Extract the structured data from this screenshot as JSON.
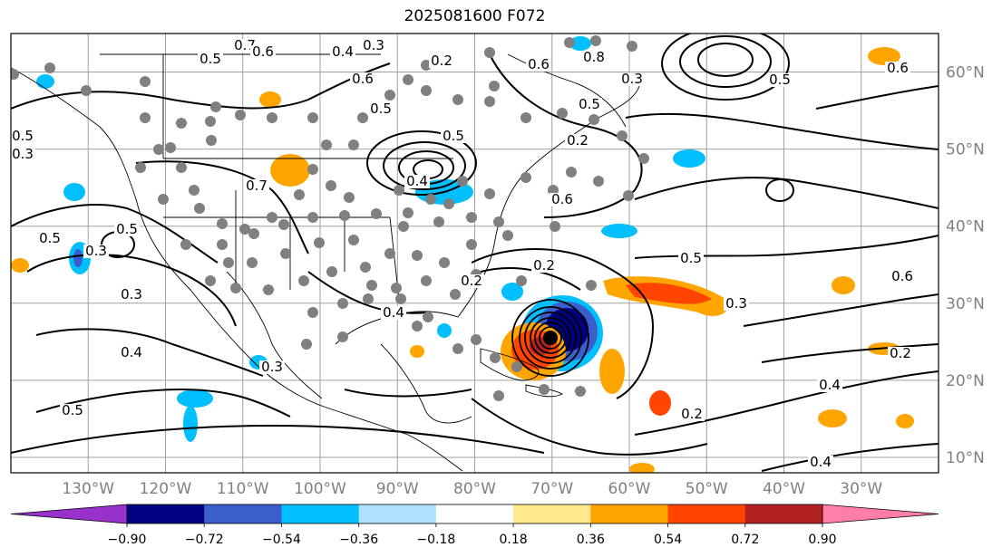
{
  "title": "2025081600 F072",
  "map": {
    "projection": "PlateCarree",
    "extent_lon": [
      -140,
      -20
    ],
    "extent_lat": [
      8,
      65
    ],
    "gridlines": true,
    "lon_ticks": [
      "130°W",
      "120°W",
      "110°W",
      "100°W",
      "90°W",
      "80°W",
      "70°W",
      "60°W",
      "50°W",
      "40°W",
      "30°W"
    ],
    "lat_ticks": [
      "60°N",
      "50°N",
      "40°N",
      "30°N",
      "20°N",
      "10°N"
    ],
    "contour_labels": [
      "0.7",
      "0.6",
      "0.5",
      "0.4",
      "0.3",
      "0.2",
      "0.8",
      "0.6",
      "0.3",
      "0.5",
      "0.6",
      "0.5",
      "0.4",
      "0.2",
      "0.5",
      "0.5",
      "0.3",
      "0.5",
      "0.3",
      "0.3",
      "0.4",
      "0.5",
      "0.4",
      "0.2",
      "0.2",
      "0.6",
      "0.7",
      "0.3",
      "0.2",
      "0.5",
      "0.6",
      "0.4",
      "0.2",
      "0.4",
      "0.6",
      "0.5",
      "0.5",
      "0.3"
    ],
    "storm_center_lon": -70,
    "storm_center_lat": 24.5
  },
  "colorbar": {
    "orientation": "horizontal",
    "extend": "both",
    "colors": [
      "#9932cc",
      "#000080",
      "#3a5fcd",
      "#00bfff",
      "#b0e0ff",
      "#ffffff",
      "#ffe98a",
      "#ffa500",
      "#ff4500",
      "#b22222",
      "#ff7fa8"
    ],
    "tick_labels": [
      "−0.90",
      "−0.72",
      "−0.54",
      "−0.36",
      "−0.18",
      "0.18",
      "0.36",
      "0.54",
      "0.72",
      "0.90"
    ]
  }
}
